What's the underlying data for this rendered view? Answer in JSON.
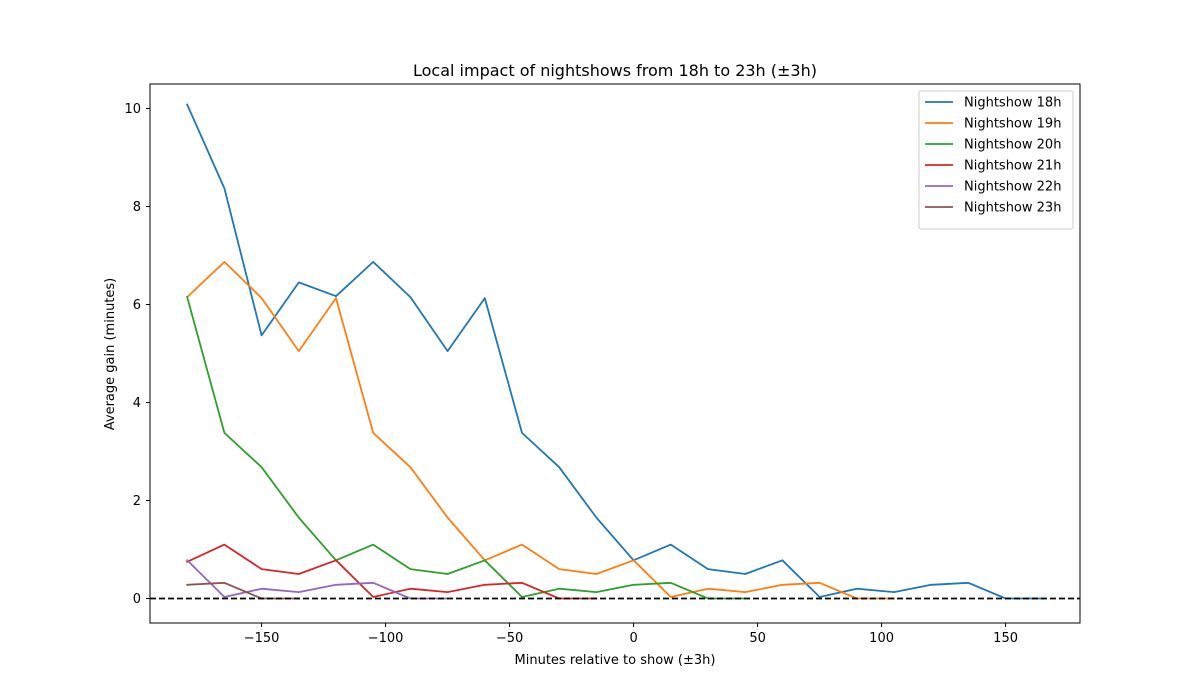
{
  "chart_data": {
    "type": "line",
    "title": "Local impact of nightshows from 18h to 23h (±3h)",
    "xlabel": "Minutes relative to show (±3h)",
    "ylabel": "Average gain (minutes)",
    "xlim": [
      -195,
      180
    ],
    "ylim": [
      -0.5,
      10.5
    ],
    "xticks": [
      -150,
      -100,
      -50,
      0,
      50,
      100,
      150
    ],
    "xtick_labels": [
      "−150",
      "−100",
      "−50",
      "0",
      "50",
      "100",
      "150"
    ],
    "yticks": [
      0,
      2,
      4,
      6,
      8,
      10
    ],
    "ytick_labels": [
      "0",
      "2",
      "4",
      "6",
      "8",
      "10"
    ],
    "grid": false,
    "legend_position": "top-right",
    "reference_line": {
      "y": 0,
      "style": "dashed",
      "color": "#000000"
    },
    "series": [
      {
        "name": "Nightshow 18h",
        "color": "#1f77b4",
        "x": [
          -180,
          -165,
          -150,
          -135,
          -120,
          -105,
          -90,
          -75,
          -60,
          -45,
          -30,
          -15,
          0,
          15,
          30,
          45,
          60,
          75,
          90,
          105,
          120,
          135,
          150,
          165
        ],
        "values": [
          10.08,
          8.37,
          5.37,
          6.45,
          6.17,
          6.87,
          6.15,
          5.05,
          6.13,
          3.38,
          2.68,
          1.65,
          0.78,
          1.1,
          0.6,
          0.5,
          0.78,
          0.03,
          0.2,
          0.13,
          0.28,
          0.32,
          0.0,
          0.0
        ]
      },
      {
        "name": "Nightshow 19h",
        "color": "#ff7f0e",
        "x": [
          -180,
          -165,
          -150,
          -135,
          -120,
          -105,
          -90,
          -75,
          -60,
          -45,
          -30,
          -15,
          0,
          15,
          30,
          45,
          60,
          75,
          90,
          105
        ],
        "values": [
          6.15,
          6.87,
          6.13,
          5.05,
          6.13,
          3.38,
          2.68,
          1.65,
          0.78,
          1.1,
          0.6,
          0.5,
          0.78,
          0.03,
          0.2,
          0.13,
          0.28,
          0.32,
          0.0,
          0.0
        ]
      },
      {
        "name": "Nightshow 20h",
        "color": "#2ca02c",
        "x": [
          -180,
          -165,
          -150,
          -135,
          -120,
          -105,
          -90,
          -75,
          -60,
          -45,
          -30,
          -15,
          0,
          15,
          30,
          45
        ],
        "values": [
          6.15,
          3.38,
          2.68,
          1.65,
          0.78,
          1.1,
          0.6,
          0.5,
          0.78,
          0.03,
          0.2,
          0.13,
          0.28,
          0.32,
          0.0,
          0.0
        ]
      },
      {
        "name": "Nightshow 21h",
        "color": "#d62728",
        "x": [
          -180,
          -165,
          -150,
          -135,
          -120,
          -105,
          -90,
          -75,
          -60,
          -45,
          -30,
          -15
        ],
        "values": [
          0.75,
          1.1,
          0.6,
          0.5,
          0.78,
          0.03,
          0.2,
          0.13,
          0.28,
          0.32,
          0.0,
          0.0
        ]
      },
      {
        "name": "Nightshow 22h",
        "color": "#9467bd",
        "x": [
          -180,
          -165,
          -150,
          -135,
          -120,
          -105,
          -90,
          -75
        ],
        "values": [
          0.78,
          0.03,
          0.2,
          0.13,
          0.28,
          0.32,
          0.0,
          0.0
        ]
      },
      {
        "name": "Nightshow 23h",
        "color": "#8c564b",
        "x": [
          -180,
          -165,
          -150,
          -135
        ],
        "values": [
          0.28,
          0.32,
          0.0,
          0.0
        ]
      }
    ]
  }
}
